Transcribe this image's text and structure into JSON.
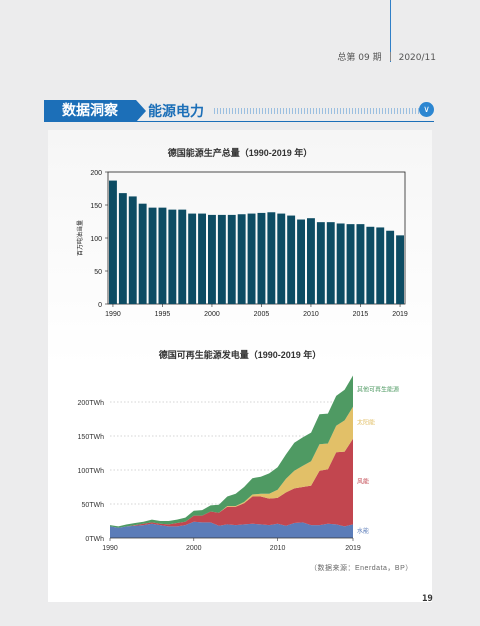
{
  "header": {
    "issue": "总第 09 期",
    "date": "2020/11"
  },
  "section": {
    "tag": "数据洞察",
    "title": "能源电力"
  },
  "chart_data": [
    {
      "type": "bar",
      "title": "德国能源生产总量（1990-2019 年）",
      "ylabel": "百万吨油当量",
      "ylim": [
        0,
        200
      ],
      "yticks": [
        0,
        50,
        100,
        150,
        200
      ],
      "xticks": [
        "1990",
        "1995",
        "2000",
        "2005",
        "2010",
        "2015",
        "2019"
      ],
      "categories": [
        "1990",
        "1991",
        "1992",
        "1993",
        "1994",
        "1995",
        "1996",
        "1997",
        "1998",
        "1999",
        "2000",
        "2001",
        "2002",
        "2003",
        "2004",
        "2005",
        "2006",
        "2007",
        "2008",
        "2009",
        "2010",
        "2011",
        "2012",
        "2013",
        "2014",
        "2015",
        "2016",
        "2017",
        "2018",
        "2019"
      ],
      "values": [
        187,
        168,
        163,
        152,
        146,
        146,
        143,
        143,
        137,
        137,
        135,
        135,
        135,
        136,
        137,
        138,
        139,
        137,
        134,
        128,
        130,
        124,
        124,
        122,
        121,
        121,
        117,
        116,
        111,
        104
      ],
      "colors": {
        "bar": "#0d4c63"
      },
      "grid": false
    },
    {
      "type": "area",
      "stacked": true,
      "title": "德国可再生能源发电量（1990-2019 年）",
      "xlim": [
        1990,
        2019
      ],
      "ylim": [
        0,
        250
      ],
      "yticks": [
        "0TWh",
        "50TWh",
        "100TWh",
        "150TWh",
        "200TWh"
      ],
      "ytick_values": [
        0,
        50,
        100,
        150,
        200
      ],
      "xticks": [
        "1990",
        "2000",
        "2010",
        "2019"
      ],
      "x": [
        1990,
        1991,
        1992,
        1993,
        1994,
        1995,
        1996,
        1997,
        1998,
        1999,
        2000,
        2001,
        2002,
        2003,
        2004,
        2005,
        2006,
        2007,
        2008,
        2009,
        2010,
        2011,
        2012,
        2013,
        2014,
        2015,
        2016,
        2017,
        2018,
        2019
      ],
      "series": [
        {
          "name": "水能",
          "color": "#5b7cb8",
          "values": [
            17,
            15,
            17,
            18,
            19,
            21,
            19,
            17,
            17,
            19,
            24,
            23,
            23,
            18,
            20,
            19,
            20,
            21,
            20,
            19,
            21,
            18,
            22,
            23,
            19,
            19,
            21,
            20,
            17,
            20
          ]
        },
        {
          "name": "风能",
          "color": "#c2464f",
          "values": [
            0,
            0,
            0,
            1,
            2,
            2,
            2,
            3,
            5,
            5,
            9,
            10,
            16,
            19,
            26,
            27,
            31,
            40,
            41,
            39,
            38,
            49,
            51,
            52,
            58,
            80,
            80,
            106,
            110,
            126
          ]
        },
        {
          "name": "太阳能",
          "color": "#e2c068",
          "values": [
            0,
            0,
            0,
            0,
            0,
            0,
            0,
            0,
            0,
            0,
            0,
            0,
            0,
            0,
            1,
            1,
            2,
            3,
            4,
            7,
            12,
            20,
            26,
            31,
            36,
            39,
            38,
            39,
            46,
            47
          ]
        },
        {
          "name": "其他可再生能源",
          "color": "#4f9a63",
          "values": [
            2,
            2,
            3,
            3,
            3,
            4,
            4,
            5,
            5,
            6,
            7,
            8,
            9,
            12,
            14,
            18,
            22,
            24,
            25,
            30,
            33,
            36,
            41,
            42,
            42,
            44,
            44,
            44,
            45,
            46
          ]
        }
      ],
      "grid": "dotted horizontal"
    }
  ],
  "source": "（数据来源：Enerdata，BP）",
  "page_number": "19"
}
